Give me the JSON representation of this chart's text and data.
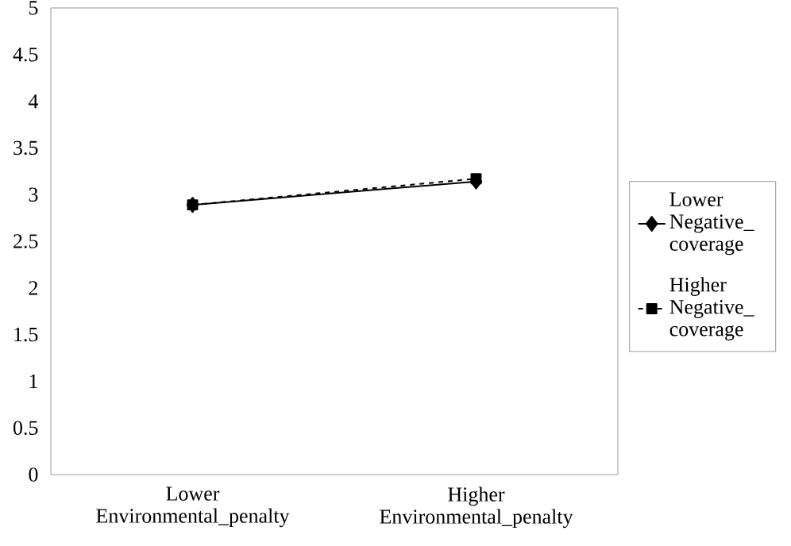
{
  "chart_data": {
    "type": "line",
    "categories": [
      "Lower Environmental_penalty",
      "Higher Environmental_penalty"
    ],
    "series": [
      {
        "name": "Lower Negative_ coverage",
        "color": "#000000",
        "values": [
          2.89,
          3.14
        ],
        "marker": "diamond",
        "line_style": "solid"
      },
      {
        "name": "Higher Negative_ coverage",
        "color": "#000000",
        "values": [
          2.89,
          3.17
        ],
        "marker": "square",
        "line_style": "dashed"
      }
    ],
    "ylim": [
      0,
      5
    ],
    "yticks": [
      0,
      0.5,
      1,
      1.5,
      2,
      2.5,
      3,
      3.5,
      4,
      4.5,
      5
    ],
    "grid": false,
    "legend": "right"
  }
}
